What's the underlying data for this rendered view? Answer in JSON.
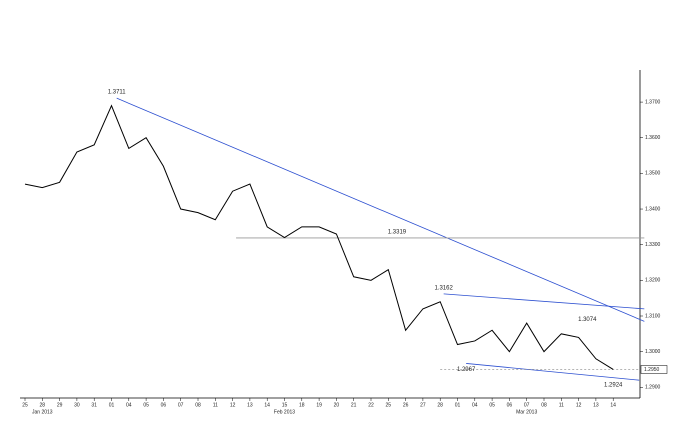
{
  "chart_data": {
    "type": "line",
    "color": "#000000",
    "categories": [
      "25",
      "28",
      "29",
      "30",
      "31",
      "01",
      "04",
      "05",
      "06",
      "07",
      "08",
      "11",
      "12",
      "13",
      "14",
      "15",
      "18",
      "19",
      "20",
      "21",
      "22",
      "25",
      "26",
      "27",
      "28",
      "01",
      "04",
      "05",
      "06",
      "07",
      "08",
      "11",
      "12",
      "13",
      "14"
    ],
    "values": [
      1.347,
      1.346,
      1.3475,
      1.356,
      1.358,
      1.369,
      1.357,
      1.36,
      1.352,
      1.34,
      1.339,
      1.337,
      1.345,
      1.347,
      1.335,
      1.332,
      1.335,
      1.335,
      1.333,
      1.321,
      1.32,
      1.323,
      1.306,
      1.312,
      1.314,
      1.302,
      1.303,
      1.306,
      1.3,
      1.308,
      1.3,
      1.305,
      1.304,
      1.298,
      1.295
    ],
    "ylim": [
      1.287,
      1.379
    ],
    "yticks": [
      {
        "value": 1.29,
        "label": "1.2900"
      },
      {
        "value": 1.3,
        "label": "1.3000"
      },
      {
        "value": 1.31,
        "label": "1.3100"
      },
      {
        "value": 1.32,
        "label": "1.3200"
      },
      {
        "value": 1.33,
        "label": "1.3300"
      },
      {
        "value": 1.34,
        "label": "1.3400"
      },
      {
        "value": 1.35,
        "label": "1.3500"
      },
      {
        "value": 1.36,
        "label": "1.3600"
      },
      {
        "value": 1.37,
        "label": "1.3700"
      }
    ],
    "month_labels": [
      {
        "label": "Jan 2013",
        "x": 1
      },
      {
        "label": "Feb 2013",
        "x": 15
      },
      {
        "label": "Mar 2013",
        "x": 29
      }
    ],
    "annotations": [
      {
        "x": 5.3,
        "y": 1.3711,
        "side": "above"
      },
      {
        "x": 21.5,
        "y": 1.3319,
        "side": "above"
      },
      {
        "x": 24.2,
        "y": 1.3162,
        "side": "above"
      },
      {
        "x": 32.5,
        "y": 1.3074,
        "side": "above"
      },
      {
        "x": 25.5,
        "y": 1.2967,
        "side": "below"
      },
      {
        "x": 34,
        "y": 1.2924,
        "side": "below"
      }
    ],
    "trendlines": [
      {
        "x": [
          5.3,
          35.8
        ],
        "y": [
          1.3711,
          1.3085
        ],
        "color": "#2c4fd0"
      },
      {
        "x": [
          24.2,
          35.8
        ],
        "y": [
          1.3162,
          1.312
        ],
        "color": "#2c4fd0"
      },
      {
        "x": [
          25.5,
          35.5
        ],
        "y": [
          1.2967,
          1.292
        ],
        "color": "#2c4fd0"
      },
      {
        "x": [
          12.2,
          35.8
        ],
        "y": [
          1.3319,
          1.3319
        ],
        "color": "#999999"
      }
    ],
    "last_price": {
      "value": 1.295,
      "label": "1.2950"
    }
  }
}
